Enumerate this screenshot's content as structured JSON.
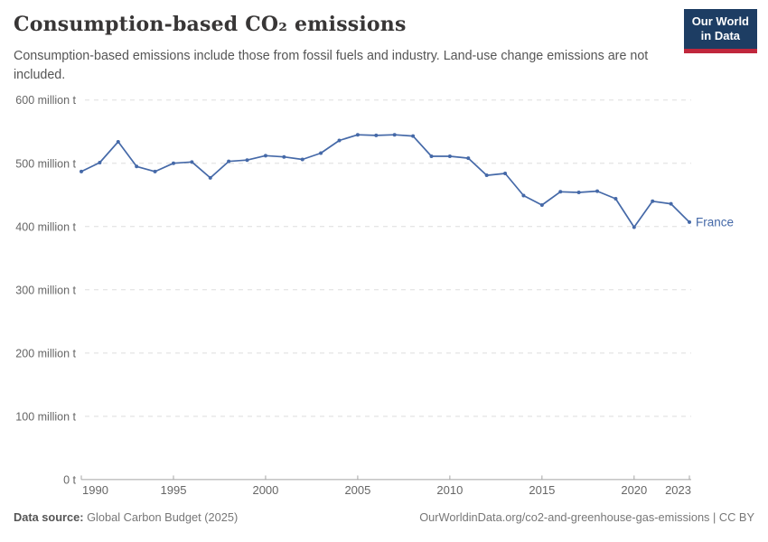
{
  "header": {
    "title": "Consumption-based CO₂ emissions",
    "subtitle": "Consumption-based emissions include those from fossil fuels and industry. Land-use change emissions are not included.",
    "logo": {
      "line1": "Our World",
      "line2": "in Data"
    }
  },
  "footer": {
    "source_label": "Data source:",
    "source_value": " Global Carbon Budget (2025)",
    "credit": "OurWorldinData.org/co2-and-greenhouse-gas-emissions | CC BY"
  },
  "colors": {
    "line": "#4569a8",
    "series_label": "#4569a8",
    "grid": "#dddddd",
    "axis": "#a5a5a5",
    "tick_label": "#666666",
    "logo_bg": "#1d3d63",
    "logo_accent": "#c0273c"
  },
  "chart_data": {
    "type": "line",
    "title": "Consumption-based CO₂ emissions",
    "xlabel": "",
    "ylabel": "",
    "grid": true,
    "legend_position": "end-of-line",
    "xlim": [
      1990,
      2023
    ],
    "ylim": [
      0,
      600
    ],
    "x_ticks": [
      1990,
      1995,
      2000,
      2005,
      2010,
      2015,
      2020,
      2023
    ],
    "y_ticks": [
      {
        "value": 0,
        "label": "0 t"
      },
      {
        "value": 100,
        "label": "100 million t"
      },
      {
        "value": 200,
        "label": "200 million t"
      },
      {
        "value": 300,
        "label": "300 million t"
      },
      {
        "value": 400,
        "label": "400 million t"
      },
      {
        "value": 500,
        "label": "500 million t"
      },
      {
        "value": 600,
        "label": "600 million t"
      }
    ],
    "series": [
      {
        "name": "France",
        "x": [
          1990,
          1991,
          1992,
          1993,
          1994,
          1995,
          1996,
          1997,
          1998,
          1999,
          2000,
          2001,
          2002,
          2003,
          2004,
          2005,
          2006,
          2007,
          2008,
          2009,
          2010,
          2011,
          2012,
          2013,
          2014,
          2015,
          2016,
          2017,
          2018,
          2019,
          2020,
          2021,
          2022,
          2023
        ],
        "values": [
          487,
          501,
          534,
          495,
          487,
          500,
          502,
          477,
          503,
          505,
          512,
          510,
          506,
          516,
          536,
          545,
          544,
          545,
          543,
          511,
          511,
          508,
          481,
          484,
          449,
          434,
          455,
          454,
          456,
          444,
          399,
          440,
          436,
          407
        ],
        "unit": "million t"
      }
    ]
  }
}
